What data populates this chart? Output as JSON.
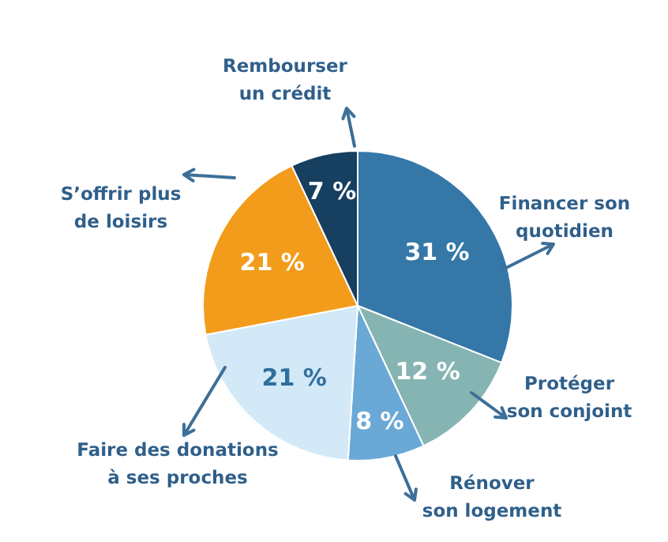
{
  "chart_data": {
    "type": "pie",
    "categories": [
      "Financer son\nquotidien",
      "Protéger\nson conjoint",
      "Rénover\nson logement",
      "Faire des donations\nà ses proches",
      "S’offrir plus\nde loisirs",
      "Rembourser\nun crédit"
    ],
    "values": [
      31,
      12,
      8,
      21,
      21,
      7
    ],
    "value_labels": [
      "31 %",
      "12 %",
      "8 %",
      "21 %",
      "21 %",
      "7 %"
    ],
    "colors": [
      "#3578a8",
      "#86b4b3",
      "#6aa9d6",
      "#d3e9f7",
      "#f39c1c",
      "#173f5f"
    ]
  }
}
